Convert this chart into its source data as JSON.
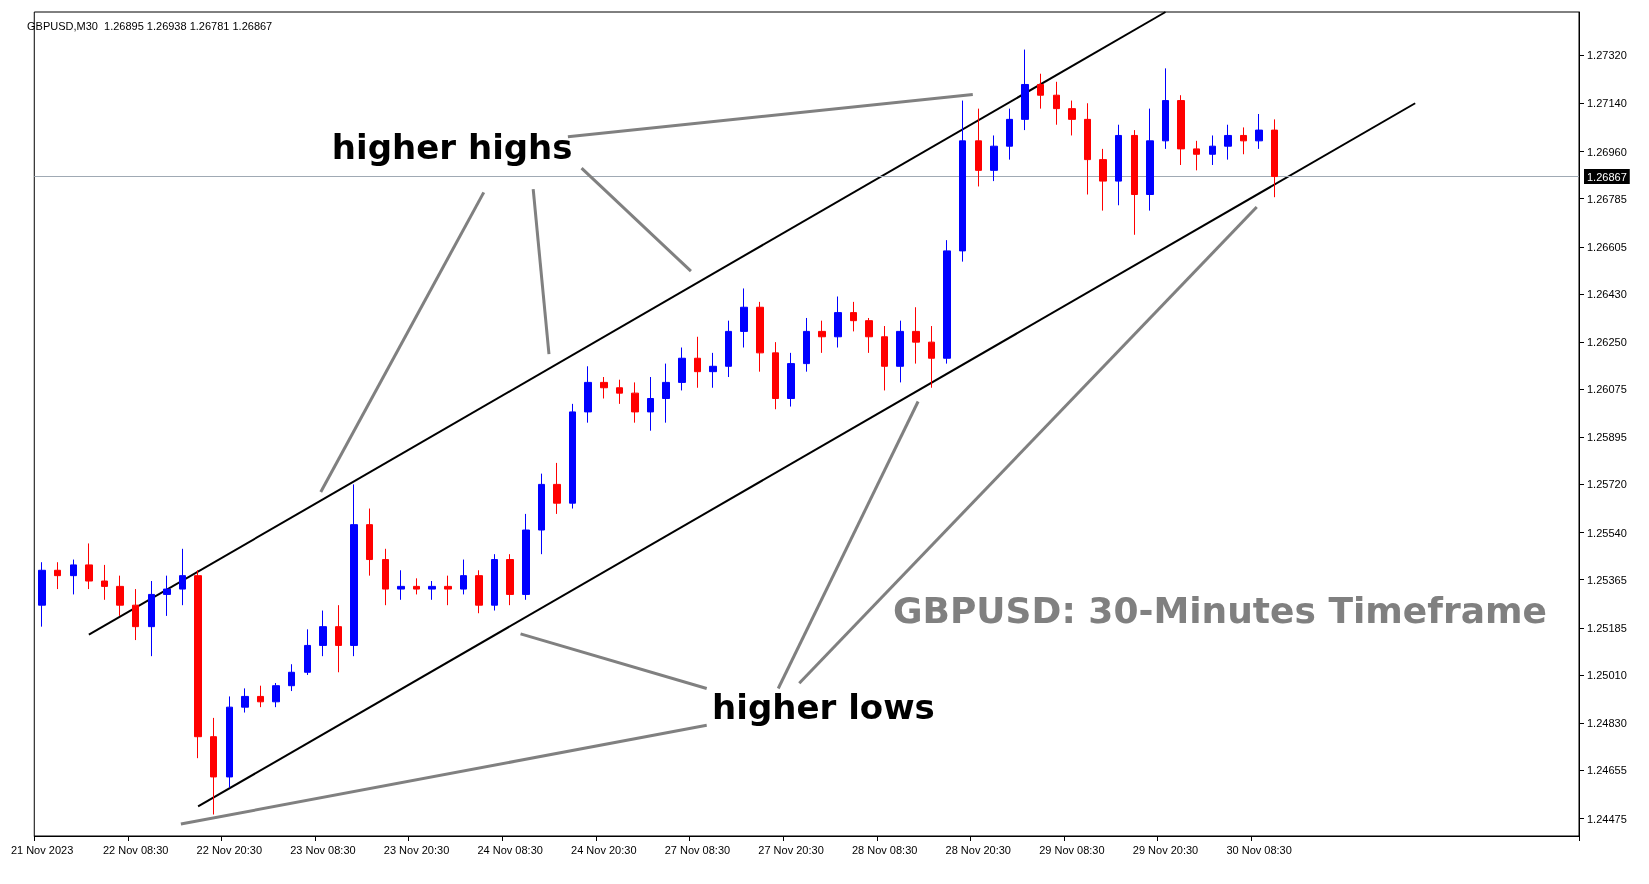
{
  "chart_data": {
    "type": "candlestick",
    "title": "GBPUSD,M30  1.26895 1.26938 1.26781 1.26867",
    "annotations": [
      "higher highs",
      "higher lows",
      "GBPUSD: 30-Minutes Timeframe"
    ],
    "categories": [
      "21 Nov 2023",
      null,
      null,
      null,
      null,
      null,
      "22 Nov 08:30",
      null,
      null,
      null,
      null,
      null,
      "22 Nov 20:30",
      null,
      null,
      null,
      null,
      null,
      "23 Nov 08:30",
      null,
      null,
      null,
      null,
      null,
      "23 Nov 20:30",
      null,
      null,
      null,
      null,
      null,
      "24 Nov 08:30",
      null,
      null,
      null,
      null,
      null,
      "24 Nov 20:30",
      null,
      null,
      null,
      null,
      null,
      "27 Nov 08:30",
      null,
      null,
      null,
      null,
      null,
      "27 Nov 20:30",
      null,
      null,
      null,
      null,
      null,
      "28 Nov 08:30",
      null,
      null,
      null,
      null,
      null,
      "28 Nov 20:30",
      null,
      null,
      null,
      null,
      null,
      "29 Nov 08:30",
      null,
      null,
      null,
      null,
      null,
      "29 Nov 20:30",
      null,
      null,
      null,
      null,
      null,
      "30 Nov 08:30",
      null,
      null,
      null,
      null,
      null,
      null,
      null,
      null,
      null,
      null,
      null,
      null,
      null,
      null,
      null,
      null,
      null,
      null,
      null,
      null
    ],
    "series": [
      {
        "colors": [
          "#0000ff",
          "#ff0000",
          "#0000ff",
          "#ff0000",
          "#ff0000",
          "#ff0000",
          "#ff0000",
          "#0000ff",
          "#0000ff",
          "#0000ff",
          "#ff0000",
          "#ff0000",
          "#0000ff",
          "#0000ff",
          "#ff0000",
          "#0000ff",
          "#0000ff",
          "#0000ff",
          "#0000ff",
          "#ff0000",
          "#0000ff",
          "#ff0000",
          "#ff0000",
          "#0000ff",
          "#ff0000",
          "#0000ff",
          "#ff0000",
          "#0000ff",
          "#ff0000",
          "#0000ff",
          "#ff0000",
          "#0000ff",
          "#0000ff",
          "#ff0000",
          "#0000ff",
          "#0000ff",
          "#ff0000",
          "#ff0000",
          "#ff0000",
          "#0000ff",
          "#0000ff",
          "#0000ff",
          "#ff0000",
          "#0000ff",
          "#0000ff",
          "#0000ff",
          "#ff0000",
          "#ff0000",
          "#0000ff",
          "#0000ff",
          "#ff0000",
          "#0000ff",
          "#ff0000",
          "#ff0000",
          "#ff0000",
          "#0000ff",
          "#ff0000",
          "#ff0000",
          "#0000ff",
          "#0000ff",
          "#ff0000",
          "#0000ff",
          "#0000ff",
          "#0000ff",
          "#ff0000",
          "#ff0000",
          "#ff0000",
          "#ff0000",
          "#ff0000",
          "#0000ff",
          "#ff0000",
          "#0000ff",
          "#0000ff",
          "#ff0000",
          "#ff0000",
          "#0000ff",
          "#0000ff",
          "#ff0000",
          "#0000ff",
          "#ff0000",
          null,
          null,
          null,
          null,
          null,
          null,
          null,
          null,
          null,
          null,
          null,
          null,
          null,
          null,
          null,
          null,
          null,
          null,
          null
        ],
        "ohlc": [
          [
            1.2527,
            1.2543,
            1.2519,
            1.254
          ],
          [
            1.254,
            1.2543,
            1.2533,
            1.2538
          ],
          [
            1.2538,
            1.2544,
            1.2531,
            1.2542
          ],
          [
            1.2542,
            1.255,
            1.2533,
            1.2536
          ],
          [
            1.2536,
            1.2542,
            1.2529,
            1.2534
          ],
          [
            1.2534,
            1.2538,
            1.2523,
            1.2527
          ],
          [
            1.2527,
            1.2533,
            1.2514,
            1.2519
          ],
          [
            1.2519,
            1.2536,
            1.2508,
            1.2531
          ],
          [
            1.2531,
            1.2538,
            1.2523,
            1.2533
          ],
          [
            1.2533,
            1.2548,
            1.2527,
            1.2538
          ],
          [
            1.2538,
            1.254,
            1.247,
            1.2478
          ],
          [
            1.2478,
            1.2485,
            1.2449,
            1.2463
          ],
          [
            1.2463,
            1.2493,
            1.2459,
            1.2489
          ],
          [
            1.2489,
            1.2496,
            1.2487,
            1.2493
          ],
          [
            1.2493,
            1.2497,
            1.2489,
            1.2491
          ],
          [
            1.2491,
            1.2498,
            1.2489,
            1.2497
          ],
          [
            1.2497,
            1.2505,
            1.2495,
            1.2502
          ],
          [
            1.2502,
            1.2518,
            1.2501,
            1.2512
          ],
          [
            1.2512,
            1.2525,
            1.2508,
            1.2519
          ],
          [
            1.2519,
            1.2527,
            1.2502,
            1.2512
          ],
          [
            1.2512,
            1.2572,
            1.2508,
            1.2557
          ],
          [
            1.2557,
            1.2563,
            1.2538,
            1.2544
          ],
          [
            1.2544,
            1.2548,
            1.2527,
            1.2533
          ],
          [
            1.2533,
            1.254,
            1.2529,
            1.2534
          ],
          [
            1.2534,
            1.2537,
            1.2531,
            1.2533
          ],
          [
            1.2533,
            1.2536,
            1.2529,
            1.2534
          ],
          [
            1.2534,
            1.2538,
            1.2527,
            1.2533
          ],
          [
            1.2533,
            1.2544,
            1.2531,
            1.2538
          ],
          [
            1.2538,
            1.254,
            1.2524,
            1.2527
          ],
          [
            1.2527,
            1.2546,
            1.2525,
            1.2544
          ],
          [
            1.2544,
            1.2546,
            1.2527,
            1.2531
          ],
          [
            1.2531,
            1.2561,
            1.2529,
            1.2555
          ],
          [
            1.2555,
            1.2576,
            1.2546,
            1.2572
          ],
          [
            1.2572,
            1.258,
            1.2561,
            1.2565
          ],
          [
            1.2565,
            1.2602,
            1.2563,
            1.2599
          ],
          [
            1.2599,
            1.2616,
            1.2595,
            1.261
          ],
          [
            1.261,
            1.2612,
            1.2604,
            1.2608
          ],
          [
            1.2608,
            1.2611,
            1.2602,
            1.2606
          ],
          [
            1.2606,
            1.261,
            1.2595,
            1.2599
          ],
          [
            1.2599,
            1.2612,
            1.2592,
            1.2604
          ],
          [
            1.2604,
            1.2617,
            1.2595,
            1.261
          ],
          [
            1.261,
            1.2623,
            1.2607,
            1.2619
          ],
          [
            1.2619,
            1.2627,
            1.2608,
            1.2614
          ],
          [
            1.2614,
            1.2621,
            1.2608,
            1.2616
          ],
          [
            1.2616,
            1.2633,
            1.2612,
            1.2629
          ],
          [
            1.2629,
            1.2645,
            1.2623,
            1.2638
          ],
          [
            1.2638,
            1.264,
            1.2614,
            1.2621
          ],
          [
            1.2621,
            1.2625,
            1.26,
            1.2604
          ],
          [
            1.2604,
            1.2621,
            1.2601,
            1.2617
          ],
          [
            1.2617,
            1.2634,
            1.2614,
            1.2629
          ],
          [
            1.2629,
            1.2633,
            1.2621,
            1.2627
          ],
          [
            1.2627,
            1.2642,
            1.2623,
            1.2636
          ],
          [
            1.2636,
            1.264,
            1.2629,
            1.2633
          ],
          [
            1.2633,
            1.2634,
            1.2621,
            1.2627
          ],
          [
            1.2627,
            1.2631,
            1.2607,
            1.2616
          ],
          [
            1.2616,
            1.2633,
            1.261,
            1.2629
          ],
          [
            1.2629,
            1.2638,
            1.2617,
            1.2625
          ],
          [
            1.2625,
            1.2631,
            1.2608,
            1.2619
          ],
          [
            1.2619,
            1.2663,
            1.2617,
            1.2659
          ],
          [
            1.2659,
            1.2715,
            1.2655,
            1.27
          ],
          [
            1.27,
            1.2712,
            1.2683,
            1.2689
          ],
          [
            1.2689,
            1.2702,
            1.2685,
            1.2698
          ],
          [
            1.2698,
            1.2712,
            1.2693,
            1.2708
          ],
          [
            1.2708,
            1.2734,
            1.2704,
            1.2721
          ],
          [
            1.2721,
            1.2725,
            1.2712,
            1.2717
          ],
          [
            1.2717,
            1.2722,
            1.2706,
            1.2712
          ],
          [
            1.2712,
            1.2715,
            1.2702,
            1.2708
          ],
          [
            1.2708,
            1.2714,
            1.268,
            1.2693
          ],
          [
            1.2693,
            1.2697,
            1.2674,
            1.2685
          ],
          [
            1.2685,
            1.2706,
            1.2676,
            1.2702
          ],
          [
            1.2702,
            1.2704,
            1.2665,
            1.268
          ],
          [
            1.268,
            1.2712,
            1.2674,
            1.27
          ],
          [
            1.27,
            1.2727,
            1.2697,
            1.2715
          ],
          [
            1.2715,
            1.2717,
            1.2691,
            1.2697
          ],
          [
            1.2697,
            1.27,
            1.2689,
            1.2695
          ],
          [
            1.2695,
            1.2702,
            1.2691,
            1.2698
          ],
          [
            1.2698,
            1.2706,
            1.2693,
            1.2702
          ],
          [
            1.2702,
            1.2705,
            1.2695,
            1.27
          ],
          [
            1.27,
            1.271,
            1.2697,
            1.2704
          ],
          [
            1.2704,
            1.2708,
            1.2679,
            1.26867
          ],
          null,
          null,
          null,
          null,
          null,
          null,
          null,
          null,
          null,
          null,
          null,
          null,
          null,
          null,
          null,
          null,
          null,
          null,
          null
        ]
      },
      {
        "type": "line",
        "color": "#000000",
        "values": [
          null,
          null,
          null,
          1.2516,
          null,
          null,
          null,
          null,
          null,
          null,
          null,
          null,
          null,
          null,
          null,
          null,
          null,
          null,
          null,
          null,
          null,
          null,
          null,
          null,
          null,
          null,
          null,
          null,
          null,
          null,
          null,
          null,
          null,
          null,
          null,
          null,
          null,
          null,
          null,
          null,
          null,
          null,
          null,
          null,
          null,
          null,
          null,
          null,
          null,
          null,
          null,
          null,
          null,
          null,
          null,
          null,
          null,
          null,
          null,
          null,
          null,
          null,
          null,
          null,
          null,
          null,
          null,
          null,
          null,
          null,
          null,
          null,
          1.2748,
          null,
          null,
          null,
          null,
          null,
          null,
          null,
          null,
          null,
          null,
          null,
          null,
          null,
          null,
          null,
          null,
          null,
          null,
          null,
          null,
          null,
          null,
          null,
          null,
          null,
          null
        ]
      },
      {
        "type": "line",
        "color": "#000000",
        "values": [
          null,
          null,
          null,
          null,
          null,
          null,
          null,
          null,
          null,
          null,
          1.2452,
          null,
          null,
          null,
          null,
          null,
          null,
          null,
          null,
          null,
          null,
          null,
          null,
          null,
          null,
          null,
          null,
          null,
          null,
          null,
          null,
          null,
          null,
          null,
          null,
          null,
          null,
          null,
          null,
          null,
          null,
          null,
          null,
          null,
          null,
          null,
          null,
          null,
          null,
          null,
          null,
          null,
          null,
          null,
          null,
          null,
          null,
          null,
          null,
          null,
          null,
          null,
          null,
          null,
          null,
          null,
          null,
          null,
          null,
          null,
          null,
          null,
          null,
          null,
          null,
          null,
          null,
          null,
          null,
          null,
          null,
          null,
          null,
          null,
          null,
          null,
          null,
          null,
          1.2714,
          null,
          null,
          null,
          null,
          null,
          null,
          null,
          null,
          null,
          null
        ]
      }
    ],
    "ylim": [
      1.2441,
      1.2748
    ],
    "yticks": [
      {
        "value": 1.2732,
        "label": "1.27320"
      },
      {
        "value": 1.2714,
        "label": "1.27140"
      },
      {
        "value": 1.2696,
        "label": "1.26960"
      },
      {
        "value": 1.26785,
        "label": "1.26785"
      },
      {
        "value": 1.26605,
        "label": "1.26605"
      },
      {
        "value": 1.2643,
        "label": "1.26430"
      },
      {
        "value": 1.2625,
        "label": "1.26250"
      },
      {
        "value": 1.26075,
        "label": "1.26075"
      },
      {
        "value": 1.25895,
        "label": "1.25895"
      },
      {
        "value": 1.2572,
        "label": "1.25720"
      },
      {
        "value": 1.2554,
        "label": "1.25540"
      },
      {
        "value": 1.25365,
        "label": "1.25365"
      },
      {
        "value": 1.25185,
        "label": "1.25185"
      },
      {
        "value": 1.2501,
        "label": "1.25010"
      },
      {
        "value": 1.2483,
        "label": "1.24830"
      },
      {
        "value": 1.24655,
        "label": "1.24655"
      },
      {
        "value": 1.24475,
        "label": "1.24475"
      }
    ],
    "ref_lines": [
      {
        "axis": "y",
        "value": 1.26867,
        "label": "1.26867",
        "color": "#a0aab4"
      }
    ],
    "grid": false
  }
}
